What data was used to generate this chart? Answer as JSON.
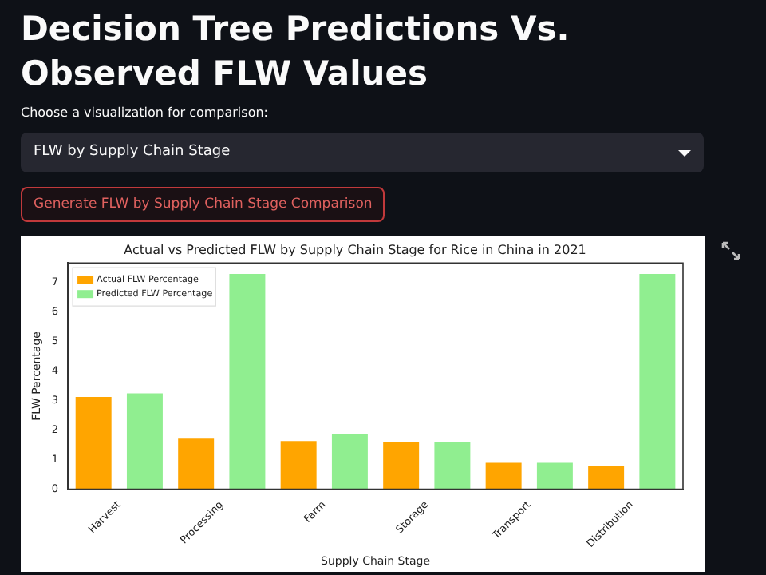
{
  "chart_data": {
    "type": "bar",
    "title": "Actual vs Predicted FLW by Supply Chain Stage for Rice in China in 2021",
    "xlabel": "Supply Chain Stage",
    "ylabel": "FLW Percentage",
    "categories": [
      "Harvest",
      "Processing",
      "Farm",
      "Storage",
      "Transport",
      "Distribution"
    ],
    "series": [
      {
        "name": "Actual FLW Percentage",
        "color": "#ffa500",
        "values": [
          3.12,
          1.71,
          1.63,
          1.59,
          0.89,
          0.79
        ]
      },
      {
        "name": "Predicted FLW Percentage",
        "color": "#90ee90",
        "values": [
          3.24,
          7.28,
          1.85,
          1.59,
          0.89,
          7.28
        ]
      }
    ],
    "ylim": [
      0,
      7.65
    ],
    "yticks": [
      0,
      1,
      2,
      3,
      4,
      5,
      6,
      7
    ],
    "grid": false,
    "legend": "top left",
    "annotations": [
      "Decision Tree Predictions Vs. Observed FLW Values",
      "Choose a visualization for comparison:",
      "FLW by Supply Chain Stage",
      "Generate FLW by Supply Chain Stage Comparison"
    ]
  }
}
